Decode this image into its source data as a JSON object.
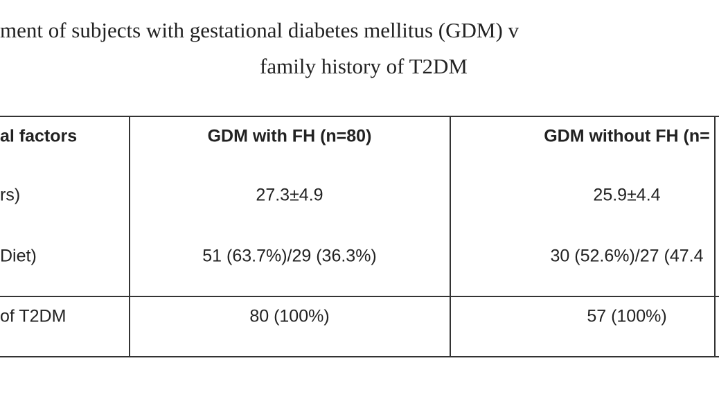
{
  "title": {
    "line1": "ment of subjects with gestational diabetes mellitus (GDM) v",
    "line2": "family history of T2DM"
  },
  "table": {
    "header": [
      "al factors",
      "GDM with FH (n=80)",
      "GDM without FH (n="
    ],
    "rows": [
      [
        "rs)",
        "27.3±4.9",
        "25.9±4.4"
      ],
      [
        "Diet)",
        "51 (63.7%)/29 (36.3%)",
        "30 (52.6%)/27 (47.4"
      ],
      [
        "of T2DM",
        "80 (100%)",
        "57 (100%)"
      ]
    ]
  }
}
